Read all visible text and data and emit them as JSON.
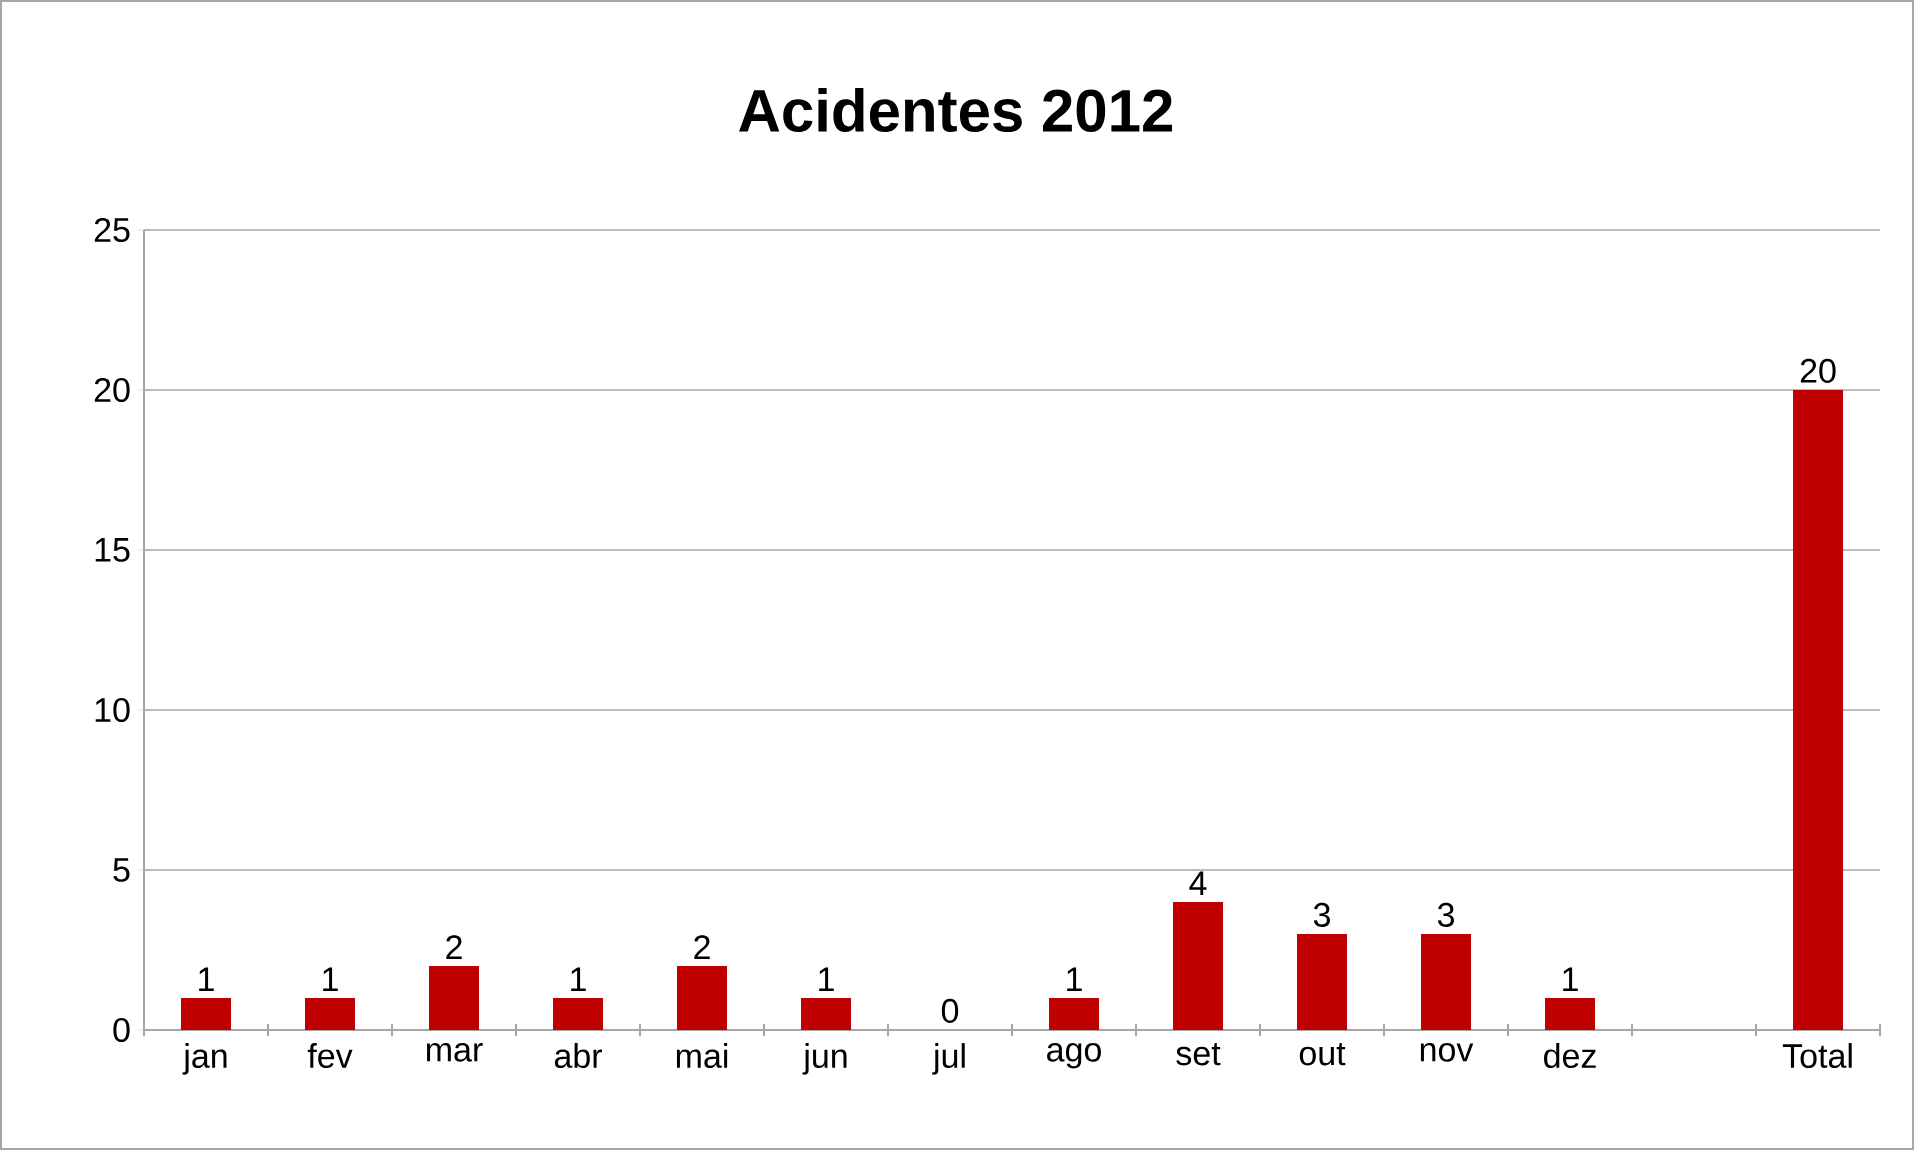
{
  "chart_data": {
    "type": "bar",
    "title": "Acidentes 2012",
    "categories": [
      "jan",
      "fev",
      "mar",
      "abr",
      "mai",
      "jun",
      "jul",
      "ago",
      "set",
      "out",
      "nov",
      "dez",
      null,
      "Total"
    ],
    "values": [
      1,
      1,
      2,
      1,
      2,
      1,
      0,
      1,
      4,
      3,
      3,
      1,
      null,
      20
    ],
    "color": "#c00000",
    "ylim": [
      0,
      25
    ],
    "yticks": [
      0,
      5,
      10,
      15,
      20,
      25
    ],
    "grid": "y",
    "data_labels": true
  }
}
